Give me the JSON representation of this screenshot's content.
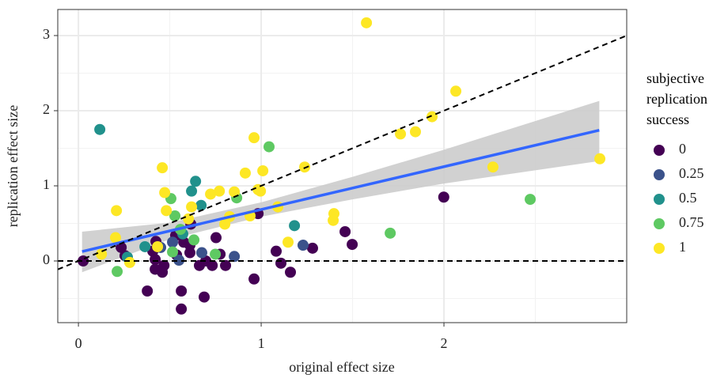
{
  "chart_data": {
    "type": "scatter",
    "x_label": "original effect size",
    "y_label": "replication effect size",
    "legend_title": "subjective replication success",
    "xlim": [
      -0.113,
      3.0
    ],
    "ylim": [
      -0.821,
      3.347
    ],
    "xticks": [
      0,
      1,
      2
    ],
    "yticks": [
      0,
      1,
      2,
      3
    ],
    "grid": true,
    "reference_lines": [
      {
        "slope": 1,
        "intercept": 0
      },
      {
        "slope": 0,
        "intercept": 0
      }
    ],
    "fit": {
      "color": "#3366ff",
      "band_color": "#cccccc",
      "x": [
        0.02,
        0.5,
        1.0,
        1.5,
        2.0,
        2.85
      ],
      "y": [
        0.126,
        0.4,
        0.685,
        0.97,
        1.255,
        1.74
      ],
      "lower": [
        -0.15,
        0.29,
        0.59,
        0.82,
        1.03,
        1.33
      ],
      "upper": [
        0.39,
        0.51,
        0.78,
        1.12,
        1.48,
        2.13
      ]
    },
    "series": [
      {
        "name": "0",
        "color": "#440154",
        "x": [
          1.999,
          0.983,
          1.459,
          1.498,
          1.281,
          1.082,
          1.108,
          1.16,
          0.961,
          0.026,
          0.234,
          0.255,
          0.377,
          0.563,
          0.688,
          0.563,
          0.424,
          0.407,
          0.42,
          0.42,
          0.468,
          0.459,
          0.537,
          0.532,
          0.576,
          0.615,
          0.61,
          0.61,
          0.662,
          0.697,
          0.732,
          0.753,
          0.775,
          0.805
        ],
        "values": [
          0.85,
          0.63,
          0.39,
          0.22,
          0.17,
          0.13,
          -0.03,
          -0.15,
          -0.24,
          0.0,
          0.18,
          0.07,
          -0.4,
          -0.4,
          -0.48,
          -0.64,
          0.26,
          0.13,
          0.02,
          -0.11,
          -0.06,
          -0.15,
          0.08,
          0.34,
          0.25,
          0.49,
          0.11,
          0.21,
          -0.06,
          0.0,
          -0.06,
          0.31,
          0.09,
          -0.06
        ]
      },
      {
        "name": "0.25",
        "color": "#3b528b",
        "x": [
          1.229,
          0.853,
          0.675,
          0.55,
          0.45,
          0.515
        ],
        "values": [
          0.21,
          0.06,
          0.11,
          0.01,
          0.18,
          0.25
        ]
      },
      {
        "name": "0.5",
        "color": "#21918c",
        "x": [
          0.117,
          0.641,
          0.619,
          0.671,
          1.182,
          0.571,
          0.364,
          0.268
        ],
        "values": [
          1.75,
          1.06,
          0.93,
          0.74,
          0.47,
          0.36,
          0.19,
          0.05
        ]
      },
      {
        "name": "0.75",
        "color": "#5ec962",
        "x": [
          1.043,
          2.472,
          1.706,
          0.506,
          0.866,
          0.528,
          0.558,
          0.632,
          0.212,
          0.749,
          0.515
        ],
        "values": [
          1.52,
          0.82,
          0.37,
          0.83,
          0.84,
          0.6,
          0.42,
          0.28,
          -0.14,
          0.09,
          0.12
        ]
      },
      {
        "name": "1",
        "color": "#fde725",
        "x": [
          1.576,
          2.065,
          1.935,
          1.762,
          1.844,
          0.961,
          1.238,
          1.009,
          0.913,
          0.459,
          2.268,
          2.853,
          0.983,
          0.996,
          0.771,
          0.723,
          0.472,
          0.853,
          0.208,
          0.481,
          0.619,
          0.602,
          0.827,
          0.939,
          1.091,
          1.398,
          1.394,
          0.801,
          0.203,
          0.126,
          1.147,
          0.281,
          0.433
        ],
        "values": [
          3.17,
          2.26,
          1.92,
          1.69,
          1.72,
          1.64,
          1.25,
          1.2,
          1.17,
          1.24,
          1.25,
          1.36,
          0.95,
          0.93,
          0.93,
          0.89,
          0.91,
          0.92,
          0.67,
          0.67,
          0.72,
          0.56,
          0.59,
          0.6,
          0.72,
          0.63,
          0.54,
          0.49,
          0.31,
          0.09,
          0.25,
          -0.02,
          0.19
        ]
      }
    ]
  }
}
